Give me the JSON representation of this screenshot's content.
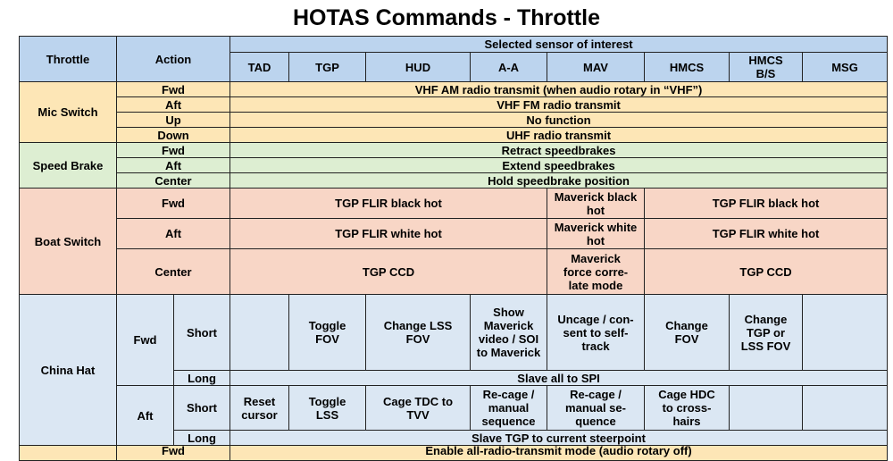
{
  "title": "HOTAS Commands - Throttle",
  "header": {
    "throttle": "Throttle",
    "action": "Action",
    "sensor_group": "Selected sensor of interest",
    "sensors": [
      "TAD",
      "TGP",
      "HUD",
      "A-A",
      "MAV",
      "HMCS",
      "HMCS B/S",
      "MSG"
    ]
  },
  "mic_switch": {
    "label": "Mic Switch",
    "rows": [
      {
        "action": "Fwd",
        "result": "VHF AM radio transmit (when audio rotary in “VHF”)"
      },
      {
        "action": "Aft",
        "result": "VHF FM radio transmit"
      },
      {
        "action": "Up",
        "result": "No function"
      },
      {
        "action": "Down",
        "result": "UHF radio transmit"
      }
    ]
  },
  "speed_brake": {
    "label": "Speed Brake",
    "rows": [
      {
        "action": "Fwd",
        "result": "Retract speedbrakes"
      },
      {
        "action": "Aft",
        "result": "Extend speedbrakes"
      },
      {
        "action": "Center",
        "result": "Hold speedbrake position"
      }
    ]
  },
  "boat_switch": {
    "label": "Boat Switch",
    "rows": [
      {
        "action": "Fwd",
        "left": "TGP FLIR black hot",
        "mav": "Maverick black hot",
        "right": "TGP FLIR black hot"
      },
      {
        "action": "Aft",
        "left": "TGP FLIR white hot",
        "mav": "Maverick white hot",
        "right": "TGP FLIR white hot"
      },
      {
        "action": "Center",
        "left": "TGP CCD",
        "mav": "Maverick force corre-late mode",
        "right": "TGP CCD"
      }
    ]
  },
  "china_hat": {
    "label": "China Hat",
    "fwd": {
      "label": "Fwd",
      "short_label": "Short",
      "short": {
        "tad": "",
        "tgp": "Toggle FOV",
        "hud": "Change LSS FOV",
        "aa": "Show Maverick video / SOI to Maverick",
        "mav": "Uncage / con-sent to self-track",
        "hmcs": "Change FOV",
        "hmcs_bs": "Change TGP or LSS FOV",
        "msg": ""
      },
      "long_label": "Long",
      "long": "Slave all to SPI"
    },
    "aft": {
      "label": "Aft",
      "short_label": "Short",
      "short": {
        "tad": "Reset cursor",
        "tgp": "Toggle LSS",
        "hud": "Cage TDC to TVV",
        "aa": "Re-cage / manual sequence",
        "mav": "Re-cage / manual se-quence",
        "hmcs": "Cage HDC to cross-hairs",
        "hmcs_bs": "",
        "msg": ""
      },
      "long_label": "Long",
      "long": "Slave TGP to current steerpoint"
    }
  },
  "cut_row": {
    "action": "Fwd",
    "result": "Enable all-radio-transmit mode (audio rotary off)"
  }
}
